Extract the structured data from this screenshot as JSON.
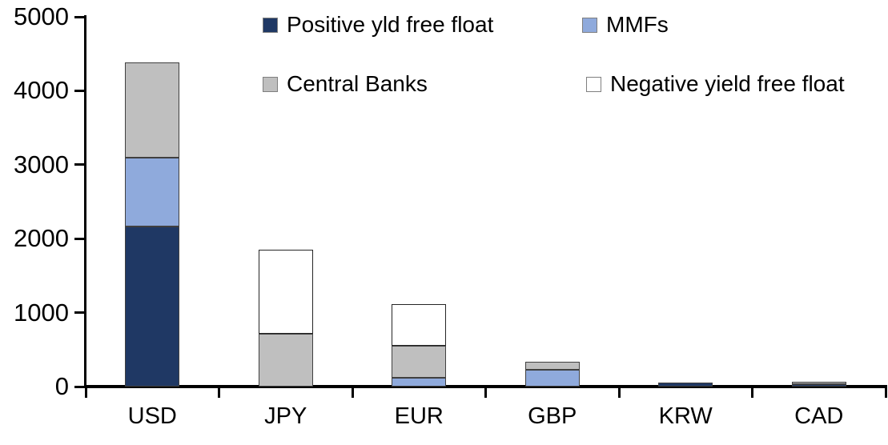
{
  "chart_data": {
    "type": "bar",
    "stacked": true,
    "title": "",
    "xlabel": "",
    "ylabel": "",
    "categories": [
      "USD",
      "JPY",
      "EUR",
      "GBP",
      "KRW",
      "CAD"
    ],
    "series": [
      {
        "name": "Positive yld free float",
        "color": "#1F3864",
        "border": "#404040",
        "values": [
          2170,
          0,
          0,
          0,
          50,
          30
        ]
      },
      {
        "name": "MMFs",
        "color": "#8FAADC",
        "border": "#404040",
        "values": [
          930,
          0,
          120,
          230,
          0,
          0
        ]
      },
      {
        "name": "Central Banks",
        "color": "#BFBFBF",
        "border": "#404040",
        "values": [
          1280,
          710,
          430,
          110,
          0,
          30
        ]
      },
      {
        "name": "Negative yield free float",
        "color": "#FFFFFF",
        "border": "#262626",
        "values": [
          0,
          1140,
          560,
          0,
          0,
          0
        ]
      }
    ],
    "stack_totals": [
      4380,
      1850,
      1110,
      340,
      50,
      60
    ],
    "ylim": [
      0,
      5000
    ],
    "yticks": [
      0,
      1000,
      2000,
      3000,
      4000,
      5000
    ],
    "grid": false,
    "legend_position": "top-center",
    "legend_rows": [
      [
        0,
        1
      ],
      [
        2,
        3
      ]
    ],
    "axis_color": "#000000",
    "text_color": "#000000",
    "background_color": "#FFFFFF"
  }
}
